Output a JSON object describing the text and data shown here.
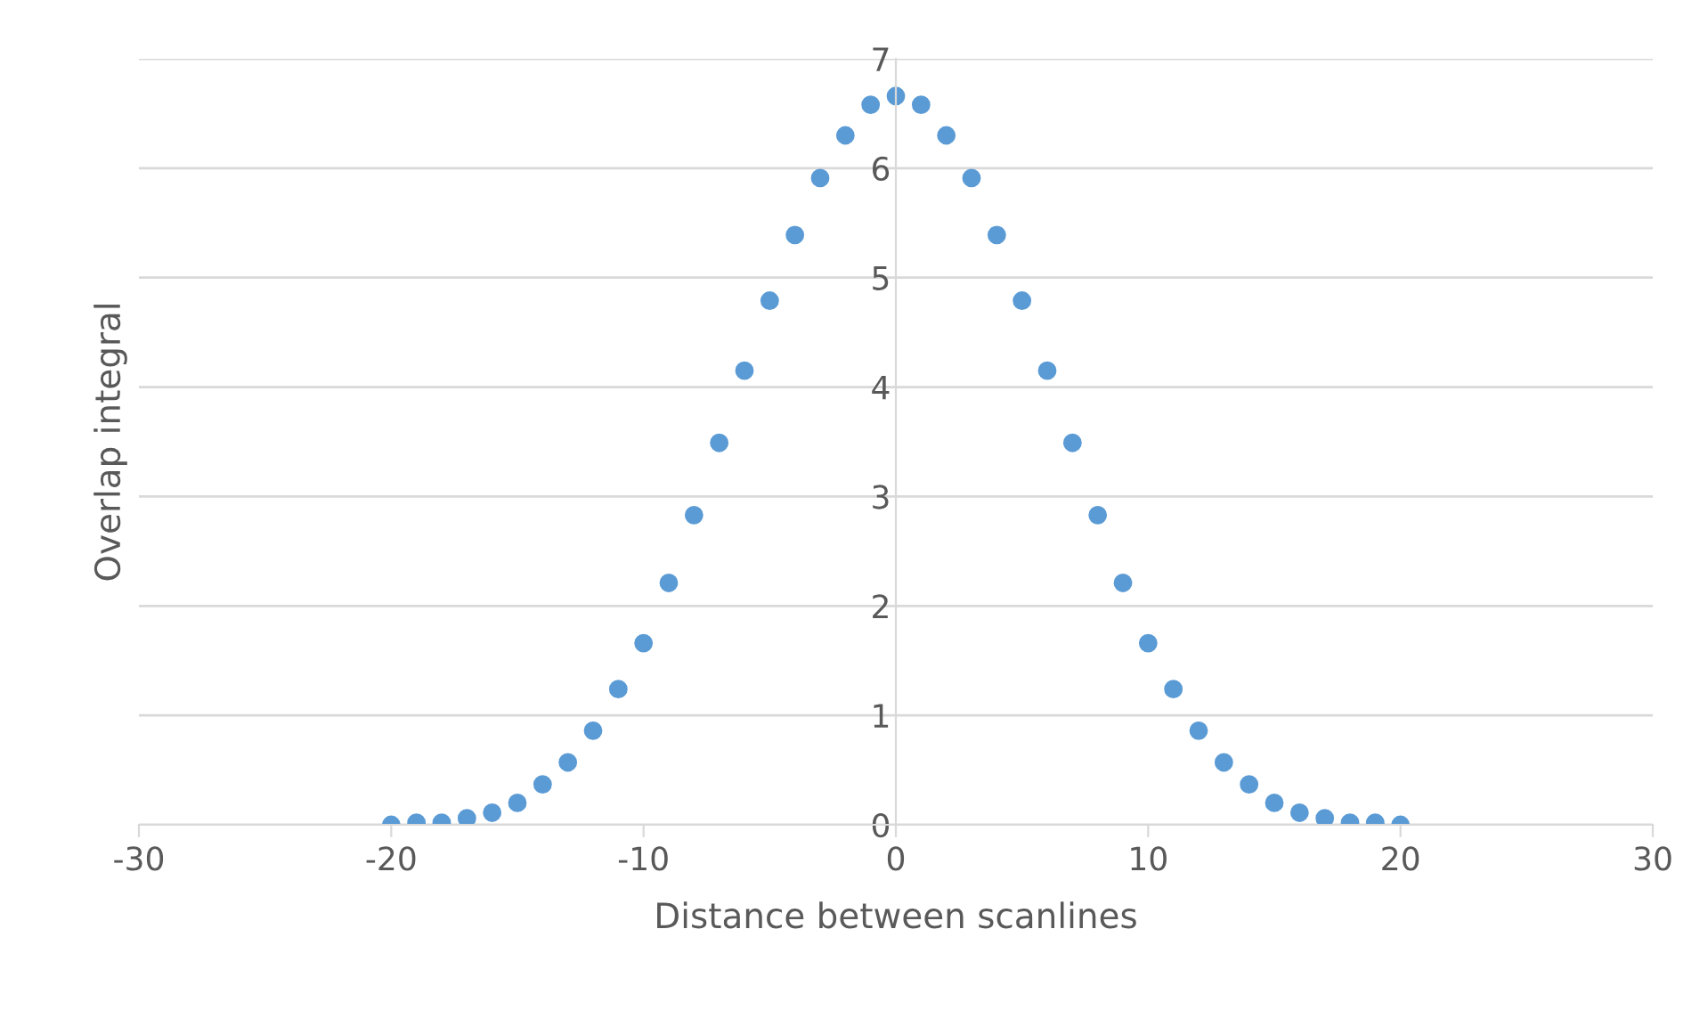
{
  "chart_data": {
    "type": "scatter",
    "xlabel": "Distance between scanlines",
    "ylabel": "Overlap integral",
    "x": [
      -20,
      -19,
      -18,
      -17,
      -16,
      -15,
      -14,
      -13,
      -12,
      -11,
      -10,
      -9,
      -8,
      -7,
      -6,
      -5,
      -4,
      -3,
      -2,
      -1,
      0,
      1,
      2,
      3,
      4,
      5,
      6,
      7,
      8,
      9,
      10,
      11,
      12,
      13,
      14,
      15,
      16,
      17,
      18,
      19,
      20
    ],
    "series": [
      {
        "color": "#5b9bd5",
        "values": [
          0,
          0.02,
          0.02,
          0.06,
          0.11,
          0.2,
          0.37,
          0.57,
          0.86,
          1.24,
          1.66,
          2.21,
          2.83,
          3.49,
          4.15,
          4.79,
          5.39,
          5.91,
          6.3,
          6.58,
          6.66,
          6.58,
          6.3,
          5.91,
          5.39,
          4.79,
          4.15,
          3.49,
          2.83,
          2.21,
          1.66,
          1.24,
          0.86,
          0.57,
          0.37,
          0.2,
          0.11,
          0.06,
          0.02,
          0.02,
          0
        ]
      }
    ],
    "xlim": [
      -30,
      30
    ],
    "xticks": [
      -30,
      -20,
      -10,
      0,
      10,
      20,
      30
    ],
    "ylim": [
      0,
      7
    ],
    "yticks": [
      0,
      1,
      2,
      3,
      4,
      5,
      6,
      7
    ],
    "grid": "y",
    "marker": "circle",
    "legend": false
  }
}
